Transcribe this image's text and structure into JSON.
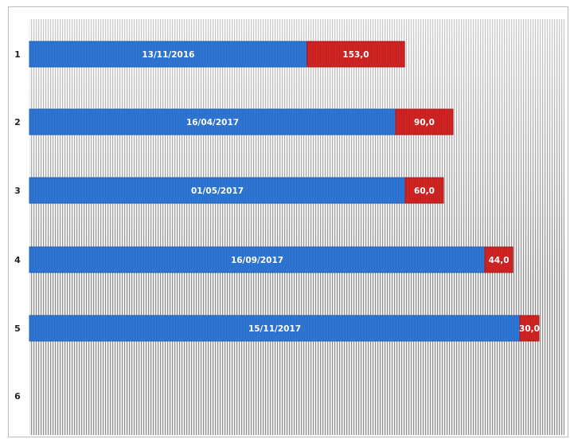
{
  "chart_data": {
    "type": "bar",
    "orientation": "horizontal",
    "stacked": true,
    "categories": [
      "1",
      "2",
      "3",
      "4",
      "5",
      "6"
    ],
    "series": [
      {
        "values": [
          436,
          575,
          590,
          715,
          770,
          null
        ],
        "labels": [
          "13/11/2016",
          "16/04/2017",
          "01/05/2017",
          "16/09/2017",
          "15/11/2017",
          ""
        ],
        "color": "#2f78d8"
      },
      {
        "values": [
          153,
          90,
          60,
          44,
          30,
          null
        ],
        "labels": [
          "153,0",
          "90,0",
          "60,0",
          "44,0",
          "30,0",
          ""
        ],
        "color": "#d42424"
      }
    ],
    "xlim": [
      0,
      800
    ],
    "grid": true,
    "background_pattern": "vertical-stripes"
  }
}
